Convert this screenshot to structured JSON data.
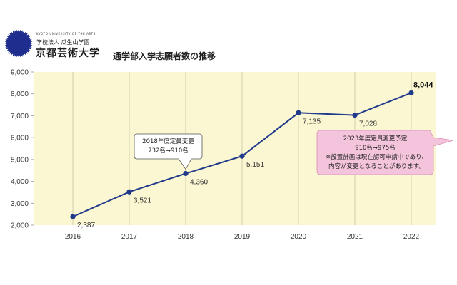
{
  "header": {
    "university_en": "KYOTO UNIVERSITY OF THE ARTS",
    "corporation": "学校法人 瓜生山学園",
    "university_name": "京都芸術大学",
    "chart_title": "通学部入学志願者数の推移"
  },
  "colors": {
    "plot_background": "#fbf7d2",
    "line": "#1f3a8a",
    "marker": "#1f3a8a",
    "logo": "#1f2d8f",
    "callout_pink": "#f4c4dc",
    "callout_white": "#ffffff"
  },
  "chart_data": {
    "type": "line",
    "title": "通学部入学志願者数の推移",
    "xlabel": "",
    "ylabel": "",
    "categories": [
      "2016",
      "2017",
      "2018",
      "2019",
      "2020",
      "2021",
      "2022"
    ],
    "ylim": [
      2000,
      9000
    ],
    "y_ticks": [
      2000,
      3000,
      4000,
      5000,
      6000,
      7000,
      8000,
      9000
    ],
    "y_tick_labels": [
      "2,000",
      "3,000",
      "4,000",
      "5,000",
      "6,000",
      "7,000",
      "8,000",
      "9,000"
    ],
    "grid": "vertical lines only",
    "series": [
      {
        "values": [
          2387,
          3521,
          4360,
          5151,
          7135,
          7028,
          8044
        ],
        "labels": [
          "2,387",
          "3,521",
          "4,360",
          "5,151",
          "7,135",
          "7,028",
          "8,044"
        ]
      }
    ],
    "annotations": [
      {
        "id": "callout-2018",
        "anchor_category": "2018",
        "lines": [
          "2018年度定員変更",
          "732名→910名"
        ]
      },
      {
        "id": "callout-2023",
        "lines": [
          "2023年度定員変更予定",
          "910名→975名",
          "※設置計画は現在認可申請中であり、",
          "内容が変更となることがあります。"
        ]
      }
    ]
  }
}
